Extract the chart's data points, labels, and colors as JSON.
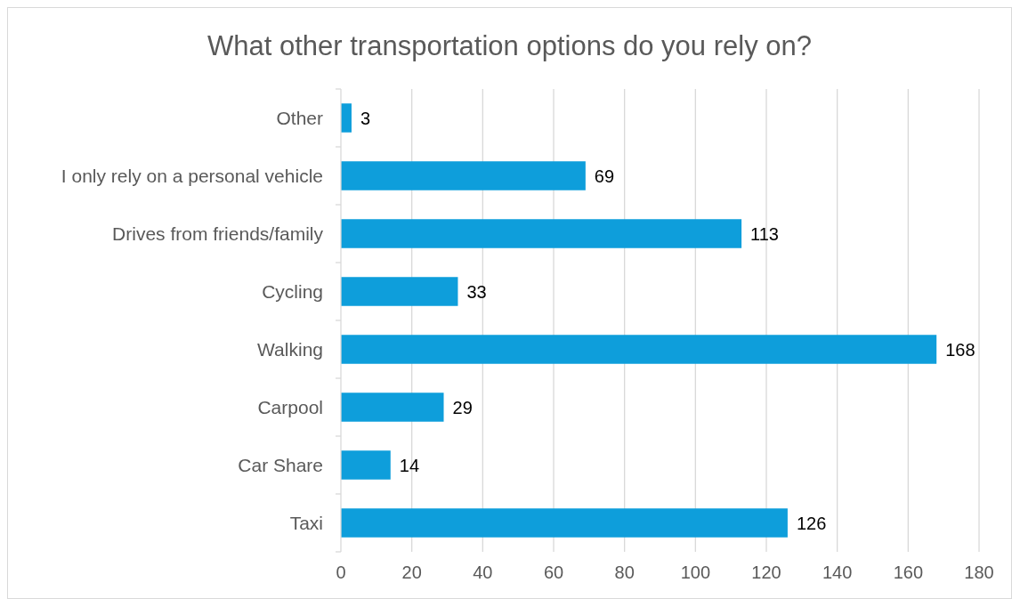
{
  "chart_data": {
    "type": "bar",
    "orientation": "horizontal",
    "title": "What other transportation options do you rely on?",
    "categories": [
      "Other",
      "I only rely on a personal vehicle",
      "Drives from friends/family",
      "Cycling",
      "Walking",
      "Carpool",
      "Car Share",
      "Taxi"
    ],
    "values": [
      3,
      69,
      113,
      33,
      168,
      29,
      14,
      126
    ],
    "color": "#0e9edb",
    "xlim": [
      0,
      180
    ],
    "xticks": [
      0,
      20,
      40,
      60,
      80,
      100,
      120,
      140,
      160,
      180
    ],
    "grid": "x",
    "data_labels": true
  }
}
